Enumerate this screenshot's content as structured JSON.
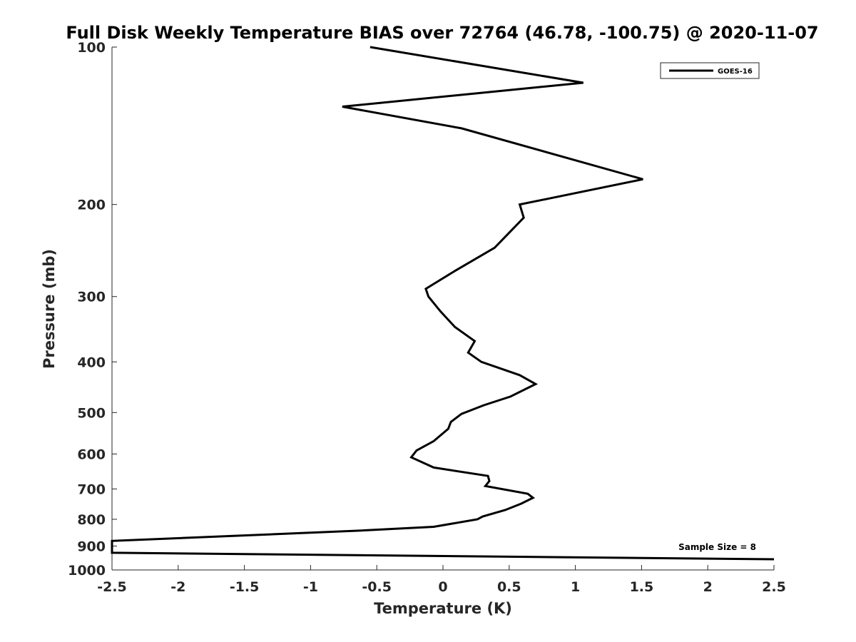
{
  "chart_data": {
    "type": "line",
    "title": "Full Disk Weekly Temperature BIAS over 72764 (46.78, -100.75) @ 2020-11-07",
    "xlabel": "Temperature (K)",
    "ylabel": "Pressure (mb)",
    "xlim": [
      -2.5,
      2.5
    ],
    "ylim": [
      100,
      1000
    ],
    "y_scale": "log",
    "y_reversed": true,
    "grid": false,
    "x_ticks": [
      -2.5,
      -2,
      -1.5,
      -1,
      -0.5,
      0,
      0.5,
      1,
      1.5,
      2,
      2.5
    ],
    "x_tick_labels": [
      "-2.5",
      "-2",
      "-1.5",
      "-1",
      "-0.5",
      "0",
      "0.5",
      "1",
      "1.5",
      "2",
      "2.5"
    ],
    "y_ticks": [
      100,
      200,
      300,
      400,
      500,
      600,
      700,
      800,
      900,
      1000
    ],
    "y_tick_labels": [
      "100",
      "200",
      "300",
      "400",
      "500",
      "600",
      "700",
      "800",
      "900",
      "1000"
    ],
    "legend": {
      "position": "top-right",
      "entries": [
        "GOES-16"
      ]
    },
    "annotation": "Sample Size = 8",
    "series": [
      {
        "name": "GOES-16",
        "color": "#000000",
        "points": [
          [
            -0.55,
            100
          ],
          [
            1.06,
            117
          ],
          [
            -0.76,
            130
          ],
          [
            0.14,
            143
          ],
          [
            1.51,
            179
          ],
          [
            0.58,
            200
          ],
          [
            0.61,
            212
          ],
          [
            0.39,
            242
          ],
          [
            0.09,
            268
          ],
          [
            -0.13,
            290
          ],
          [
            -0.11,
            300
          ],
          [
            -0.02,
            320
          ],
          [
            0.09,
            343
          ],
          [
            0.24,
            365
          ],
          [
            0.19,
            384
          ],
          [
            0.29,
            400
          ],
          [
            0.58,
            424
          ],
          [
            0.7,
            441
          ],
          [
            0.51,
            466
          ],
          [
            0.31,
            484
          ],
          [
            0.14,
            503
          ],
          [
            0.06,
            521
          ],
          [
            0.04,
            537
          ],
          [
            -0.07,
            567
          ],
          [
            -0.2,
            591
          ],
          [
            -0.24,
            609
          ],
          [
            -0.07,
            637
          ],
          [
            0.34,
            661
          ],
          [
            0.35,
            676
          ],
          [
            0.32,
            691
          ],
          [
            0.64,
            715
          ],
          [
            0.68,
            728
          ],
          [
            0.59,
            747
          ],
          [
            0.47,
            768
          ],
          [
            0.3,
            790
          ],
          [
            0.26,
            800
          ],
          [
            -0.07,
            827
          ],
          [
            -0.68,
            842
          ],
          [
            -2.5,
            880
          ],
          [
            -2.5,
            927
          ],
          [
            2.5,
            954
          ]
        ]
      }
    ]
  }
}
